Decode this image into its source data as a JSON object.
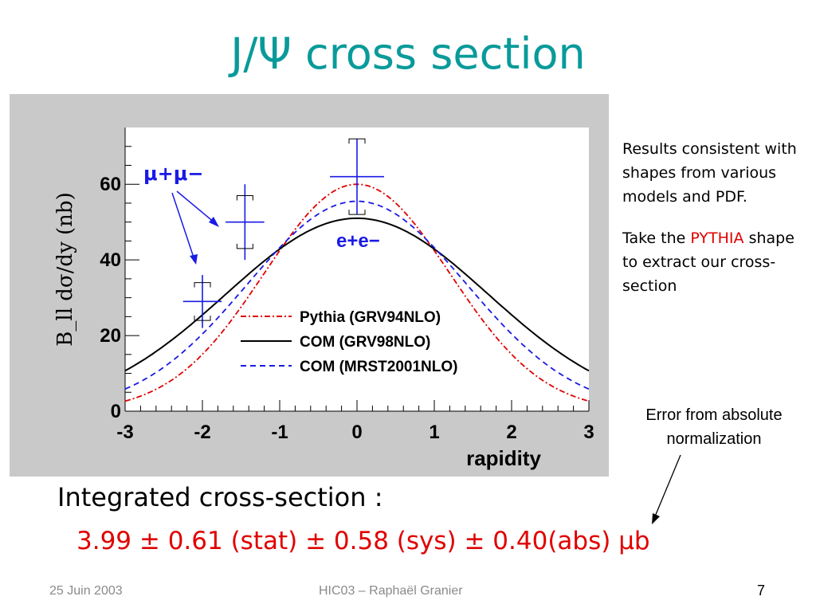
{
  "slide": {
    "title": "J/Ψ cross section",
    "right_text": {
      "p1": "Results consistent with shapes from various models and PDF.",
      "p2_before": "Take the ",
      "p2_highlight": "PYTHIA",
      "p2_after": " shape to extract our cross-section"
    },
    "error_note": "Error from absolute normalization",
    "integrated_label": "Integrated cross-section :",
    "result": "3.99 ± 0.61 (stat) ± 0.58 (sys) ± 0.40(abs) µb",
    "footer_date": "25 Juin 2003",
    "footer_author": "HIC03 – Raphaël Granier",
    "page_number": "7"
  },
  "colors": {
    "title": "#0a9a9a",
    "pythia": "#e00000",
    "com_grv98": "#000000",
    "com_mrst": "#1a1ae6",
    "data_points": "#1a1ae6"
  },
  "chart_data": {
    "type": "line",
    "xlabel": "rapidity",
    "ylabel": "B_ll dσ/dy (nb)",
    "xlim": [
      -3,
      3
    ],
    "ylim": [
      0,
      75
    ],
    "xticks": [
      "-3",
      "-2",
      "-1",
      "0",
      "1",
      "2",
      "3"
    ],
    "yticks": [
      "0",
      "20",
      "40",
      "60"
    ],
    "legend_position": "lower-right",
    "series": [
      {
        "name": "Pythia (GRV94NLO)",
        "style": "dash-dot",
        "color": "#e00000",
        "peak": 60,
        "width": 1.7,
        "power": 2
      },
      {
        "name": "COM (GRV98NLO)",
        "style": "solid",
        "color": "#000000",
        "peak": 51,
        "width": 2.4,
        "power": 2
      },
      {
        "name": "COM (MRST2001NLO)",
        "style": "dashed",
        "color": "#1a1ae6",
        "peak": 55.5,
        "width": 2.0,
        "power": 2
      }
    ],
    "points": [
      {
        "group": "μ+μ−",
        "x": -1.45,
        "y": 50,
        "xerr": 0.25,
        "stat": 10,
        "sys": 7
      },
      {
        "group": "μ+μ−",
        "x": -2.0,
        "y": 29,
        "xerr": 0.25,
        "stat": 7,
        "sys": 5
      },
      {
        "group": "e+e−",
        "x": 0.0,
        "y": 62,
        "xerr": 0.35,
        "stat": 10,
        "sys": 10
      }
    ],
    "annotations": {
      "mumu": "μ+μ−",
      "ee": "e+e−"
    }
  }
}
